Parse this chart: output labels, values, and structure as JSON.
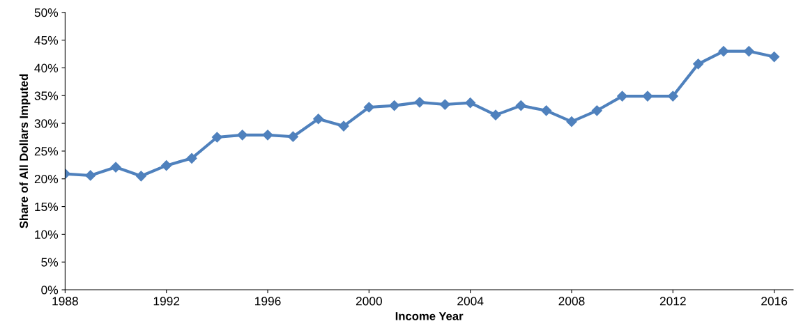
{
  "chart_data": {
    "type": "line",
    "xlabel": "Income Year",
    "ylabel": "Share of All Dollars Imputed",
    "x": [
      1988,
      1989,
      1990,
      1991,
      1992,
      1993,
      1994,
      1995,
      1996,
      1997,
      1998,
      1999,
      2000,
      2001,
      2002,
      2003,
      2004,
      2005,
      2006,
      2007,
      2008,
      2009,
      2010,
      2011,
      2012,
      2013,
      2014,
      2015,
      2016
    ],
    "series": [
      {
        "color": "#4f81bd",
        "values": [
          20.9,
          20.6,
          22.1,
          20.5,
          22.4,
          23.7,
          27.5,
          27.9,
          27.9,
          27.6,
          30.8,
          29.5,
          32.9,
          33.2,
          33.8,
          33.4,
          33.7,
          31.5,
          33.2,
          32.3,
          30.3,
          32.3,
          34.9,
          34.9,
          34.9,
          40.7,
          43.0,
          43.0,
          42.0
        ]
      }
    ],
    "xlim": [
      1988,
      2016.75
    ],
    "xticks": [
      1988,
      1992,
      1996,
      2000,
      2004,
      2008,
      2012,
      2016
    ],
    "ylim": [
      0,
      50
    ],
    "yticks": [
      {
        "value": 0,
        "label": "0%"
      },
      {
        "value": 5,
        "label": "5%"
      },
      {
        "value": 10,
        "label": "10%"
      },
      {
        "value": 15,
        "label": "15%"
      },
      {
        "value": 20,
        "label": "20%"
      },
      {
        "value": 25,
        "label": "25%"
      },
      {
        "value": 30,
        "label": "30%"
      },
      {
        "value": 35,
        "label": "35%"
      },
      {
        "value": 40,
        "label": "40%"
      },
      {
        "value": 45,
        "label": "45%"
      },
      {
        "value": 50,
        "label": "50%"
      }
    ],
    "grid": false,
    "legend": false,
    "marker": "diamond",
    "line_style": "solid"
  }
}
